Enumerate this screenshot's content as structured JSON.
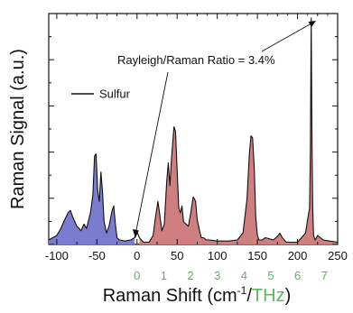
{
  "chart_data": {
    "type": "area",
    "xlabel_main": "Raman Shift (cm",
    "xlabel_sup": "-1",
    "xlabel_sep": "/",
    "xlabel_thz": "THz",
    "xlabel_close": ")",
    "ylabel": "Raman Signal (a.u.)",
    "xlim": [
      -110,
      250
    ],
    "ylim": [
      0,
      1.0
    ],
    "x_ticks": [
      -100,
      -50,
      0,
      50,
      100,
      150,
      200,
      250
    ],
    "x_tick_labels": [
      "-100",
      "-50",
      "0",
      "50",
      "100",
      "150",
      "200",
      "250"
    ],
    "thz_ticks": [
      0,
      1,
      2,
      3,
      4,
      5,
      6,
      7
    ],
    "thz_tick_labels": [
      "0",
      "1",
      "2",
      "3",
      "4",
      "5",
      "6",
      "7"
    ],
    "annotation": "Rayleigh/Raman Ratio = 3.4%",
    "series": [
      {
        "name": "Sulfur",
        "x": [
          -110,
          -100,
          -95,
          -90,
          -86,
          -83,
          -80,
          -75,
          -72,
          -70,
          -66,
          -63,
          -58,
          -55,
          -53,
          -51,
          -49,
          -47,
          -45,
          -43,
          -41,
          -38,
          -35,
          -31,
          -29,
          -27,
          -25,
          -22,
          -15,
          -8,
          -3,
          0,
          3,
          8,
          15,
          20,
          23,
          26,
          28,
          31,
          34,
          37,
          39,
          41,
          43,
          46,
          48,
          50,
          52,
          54,
          56,
          58,
          61,
          64,
          67,
          70,
          73,
          75,
          78,
          80,
          83,
          86,
          90,
          100,
          115,
          125,
          132,
          137,
          140,
          142,
          144,
          146,
          148,
          150,
          152,
          156,
          160,
          170,
          176,
          178,
          181,
          186,
          200,
          210,
          213,
          215,
          216,
          217,
          218,
          219,
          220,
          222,
          225,
          232,
          240,
          250
        ],
        "y": [
          0.02,
          0.04,
          0.07,
          0.11,
          0.14,
          0.15,
          0.12,
          0.08,
          0.07,
          0.06,
          0.09,
          0.07,
          0.14,
          0.22,
          0.39,
          0.4,
          0.24,
          0.19,
          0.32,
          0.23,
          0.1,
          0.05,
          0.08,
          0.15,
          0.17,
          0.09,
          0.03,
          0.02,
          0.015,
          0.02,
          0.03,
          0.055,
          0.03,
          0.01,
          0.01,
          0.04,
          0.12,
          0.19,
          0.14,
          0.06,
          0.09,
          0.28,
          0.36,
          0.26,
          0.38,
          0.52,
          0.5,
          0.33,
          0.16,
          0.14,
          0.17,
          0.1,
          0.09,
          0.08,
          0.14,
          0.21,
          0.19,
          0.11,
          0.06,
          0.03,
          0.03,
          0.02,
          0.02,
          0.015,
          0.015,
          0.02,
          0.05,
          0.2,
          0.4,
          0.48,
          0.47,
          0.34,
          0.12,
          0.04,
          0.02,
          0.02,
          0.03,
          0.02,
          0.04,
          0.05,
          0.03,
          0.01,
          0.01,
          0.05,
          0.12,
          0.16,
          0.42,
          1.0,
          0.44,
          0.16,
          0.04,
          0.02,
          0.04,
          0.02,
          0.015,
          0.01
        ],
        "line_color": "#111111",
        "fill_colors": {
          "anti_stokes": "#7b7bd0",
          "stokes": "#cf7f7f"
        }
      }
    ],
    "grid": false,
    "legend_placement": "upper-left"
  }
}
